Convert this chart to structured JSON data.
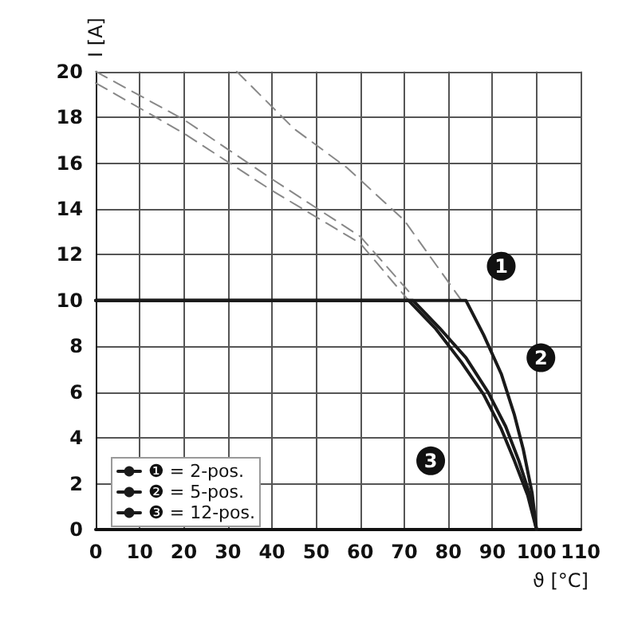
{
  "chart_data": {
    "type": "line",
    "xlabel": "ϑ [°C]",
    "ylabel": "I [A]",
    "xlim": [
      0,
      110
    ],
    "xticks": [
      0,
      10,
      20,
      30,
      40,
      50,
      60,
      70,
      80,
      90,
      100,
      110
    ],
    "ylim": [
      0,
      20
    ],
    "yticks": [
      0,
      2,
      4,
      6,
      8,
      10,
      12,
      14,
      16,
      18,
      20
    ],
    "grid": true,
    "legend": "bottom left",
    "marker": "none",
    "series": [
      {
        "name": "❶ = 2-pos.",
        "color": "#1a1a1a",
        "x": [
          0,
          84,
          88,
          92,
          95,
          97,
          99,
          100
        ],
        "values": [
          10,
          10,
          8.5,
          6.8,
          5,
          3.5,
          1.6,
          0
        ]
      },
      {
        "name": "❷ = 5-pos.",
        "color": "#1a1a1a",
        "x": [
          0,
          72,
          78,
          84,
          89,
          93,
          96,
          98.5,
          100
        ],
        "values": [
          10,
          10,
          8.8,
          7.5,
          6,
          4.5,
          3,
          1.5,
          0
        ]
      },
      {
        "name": "❸ = 12-pos.",
        "color": "#1a1a1a",
        "x": [
          0,
          71,
          77,
          83,
          88,
          92,
          95,
          98,
          100
        ],
        "values": [
          10,
          10,
          8.8,
          7.3,
          5.9,
          4.4,
          3,
          1.5,
          0
        ]
      },
      {
        "color": "#888888",
        "line_style": "dashed",
        "x": [
          32,
          45,
          57,
          70,
          83
        ],
        "values": [
          20,
          17.5,
          15.8,
          13.5,
          10
        ]
      },
      {
        "color": "#888888",
        "line_style": "dashed",
        "x": [
          0,
          20,
          40,
          60,
          71
        ],
        "values": [
          20,
          17.9,
          15.3,
          12.8,
          10.4
        ]
      },
      {
        "color": "#888888",
        "line_style": "dashed",
        "x": [
          0,
          20,
          40,
          60,
          71
        ],
        "values": [
          19.5,
          17.3,
          14.8,
          12.5,
          10
        ]
      }
    ],
    "annotations": [
      {
        "text": "1",
        "x": 92,
        "y": 11.5
      },
      {
        "text": "2",
        "x": 101,
        "y": 7.5
      },
      {
        "text": "3",
        "x": 76,
        "y": 3
      }
    ]
  }
}
